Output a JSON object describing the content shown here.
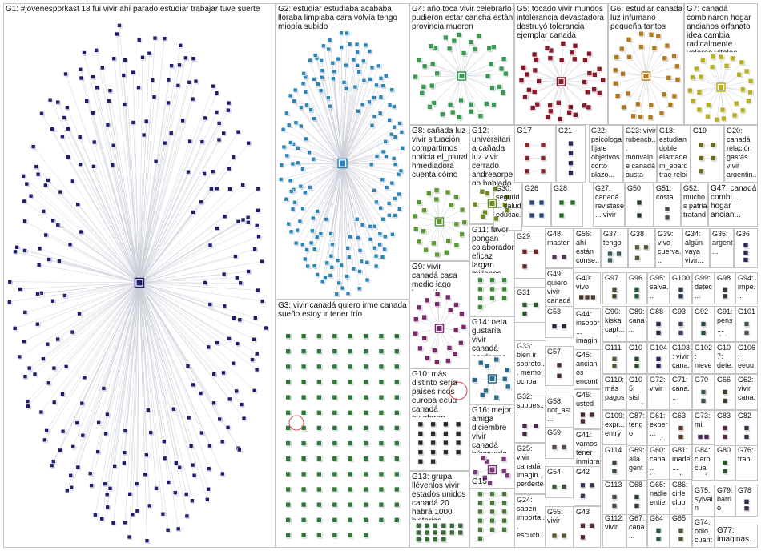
{
  "groups": [
    {
      "id": "G1",
      "title": "G1: #jovenesporkast 18 fui vivir ahí parado estudiar trabajar tuve suerte",
      "color": "#1f1f6e",
      "n": 260,
      "hub": true,
      "layout": "ring"
    },
    {
      "id": "G2",
      "title": "G2: estudiar estudiaba acababa lloraba limpiaba cara volvía tengo miopía subido",
      "color": "#2a86b8",
      "n": 180,
      "hub": true,
      "layout": "ring"
    },
    {
      "id": "G3",
      "title": "G3: vivir canadá quiero irme canada sueño estoy ir tener frío",
      "color": "#2f7a3a",
      "n": 110,
      "hub": false,
      "layout": "grid",
      "extra": "circles"
    },
    {
      "id": "G4",
      "title": "G4: año toca vivir celebrarlo pudieron estar cancha están provincia mueren",
      "color": "#3a9a55",
      "n": 40,
      "hub": true,
      "layout": "ring"
    },
    {
      "id": "G5",
      "title": "G5: tocado vivir mundos intolerancia devastadora destruyó tolerancia ejemplar canadá construido",
      "color": "#8a1a2a",
      "n": 40,
      "hub": true,
      "layout": "ring"
    },
    {
      "id": "G6",
      "title": "G6: estudiar canada luz infumano pequeña tantos llevan año pueden calentarse",
      "color": "#b07a20",
      "n": 30,
      "hub": true,
      "layout": "ring"
    },
    {
      "id": "G7",
      "title": "G7: canadá combinaron hogar ancianos orfanato idea cambia radicalmente valores vitales",
      "color": "#b8b020",
      "n": 28,
      "hub": true,
      "layout": "ring"
    },
    {
      "id": "G8",
      "title": "G8: cañada luz vivir situación compartimos noticia el_plural hmediadora cuenta cómo",
      "color": "#5a9a30",
      "n": 22,
      "hub": true,
      "layout": "ring"
    },
    {
      "id": "G9",
      "title": "G9: vivir canadá casa medio lago kawartha gustaría gente quiero",
      "color": "#7a2a6a",
      "n": 22,
      "hub": true,
      "layout": "ring"
    },
    {
      "id": "G10",
      "title": "G10: más distinto sería países ricos europa eeuu canadá ayudaran vacunas",
      "color": "#2a2a2a",
      "n": 18,
      "hub": false,
      "layout": "grid",
      "extra": "circle"
    },
    {
      "id": "G11",
      "title": "G11: favor pongan colaborador eficaz largan millones vivir reyes lugares distantes",
      "color": "#3a8a3a",
      "n": 10,
      "hub": false,
      "layout": "grid"
    },
    {
      "id": "G12",
      "title": "G12: universitaria cañada luz vivir cerrado andreaorpego hablado kadhiya ajahiou residente",
      "color": "#6a8a20",
      "n": 10,
      "hub": true,
      "layout": "ring"
    },
    {
      "id": "G13",
      "title": "G13: grupa llévenlos vivir estados unidos canadá 20 habrá 1000 historias",
      "color": "#3a6a3a",
      "n": 16,
      "hub": false,
      "layout": "grid"
    },
    {
      "id": "G14",
      "title": "G14: neta gustaría vivir canadá perderme cosa",
      "color": "#2a6a8a",
      "n": 10,
      "hub": true,
      "layout": "ring"
    },
    {
      "id": "G15",
      "title": "G15",
      "color": "#4a7a3a",
      "n": 16,
      "hub": false,
      "layout": "grid"
    },
    {
      "id": "G16",
      "title": "G16: mejor amiga diciembre vivir canadá búsqueda futuro hijos méxico hoy",
      "color": "#7a3a7a",
      "n": 8,
      "hub": true,
      "layout": "ring"
    },
    {
      "id": "G17",
      "title": "G17",
      "color": "#8a2a2a",
      "n": 6,
      "hub": false,
      "layout": "grid"
    },
    {
      "id": "G18",
      "title": "G18: estudian doble elamade m_ebard trae reloj",
      "color": "#7a6a2a",
      "n": 4,
      "hub": false,
      "layout": "grid"
    },
    {
      "id": "G19",
      "title": "G19",
      "color": "#6a6a1a",
      "n": 5,
      "hub": false,
      "layout": "grid"
    },
    {
      "id": "G20",
      "title": "G20: canadá relación gastás vivir argentin...",
      "color": "#8a7a10",
      "n": 4,
      "hub": false,
      "layout": "grid"
    },
    {
      "id": "G21",
      "title": "G21",
      "color": "#2a2a5a",
      "n": 4,
      "hub": false,
      "layout": "grid"
    },
    {
      "id": "G22",
      "title": "G22: psicóloga fíjate objetivos corto plazo...",
      "color": "#6a2a6a",
      "n": 4,
      "hub": false,
      "layout": "grid"
    },
    {
      "id": "G23",
      "title": "G23: vivir rubencb... monvalpe canadá gusta gobierno...",
      "color": "#2a6a4a",
      "n": 4,
      "hub": false,
      "layout": "grid"
    },
    {
      "id": "G24",
      "title": "G24: saben importa... escuch... investi... serio...",
      "color": "#3a3a6a",
      "n": 4,
      "hub": false,
      "layout": "grid"
    },
    {
      "id": "G25",
      "title": "G25: vivir canadá imagin... perderte verdad",
      "color": "#5a3a3a",
      "n": 4,
      "hub": false,
      "layout": "grid"
    },
    {
      "id": "G26",
      "title": "G26",
      "color": "#2a4a7a",
      "n": 4,
      "hub": false,
      "layout": "grid"
    },
    {
      "id": "G27",
      "title": "G27: canadá revistase... vivir meses...",
      "color": "#3a5a2a",
      "n": 3,
      "hub": false,
      "layout": "grid"
    },
    {
      "id": "G28",
      "title": "G28",
      "color": "#2a6a2a",
      "n": 3,
      "hub": false,
      "layout": "grid"
    },
    {
      "id": "G29",
      "title": "G29",
      "color": "#6a2a2a",
      "n": 3,
      "hub": false,
      "layout": "grid"
    },
    {
      "id": "G30",
      "title": "G30: segurid... salud educac...",
      "color": "#3a3a3a",
      "n": 3,
      "hub": false,
      "layout": "grid"
    },
    {
      "id": "G31",
      "title": "G31",
      "color": "#2a5a2a",
      "n": 3,
      "hub": false,
      "layout": "grid"
    },
    {
      "id": "G32",
      "title": "G32: supues...",
      "color": "#4a2a4a",
      "n": 3,
      "hub": false,
      "layout": "grid"
    },
    {
      "id": "G33",
      "title": "G33: bien ir sobreto... memo ochoa debe...",
      "color": "#5a4a2a",
      "n": 3,
      "hub": false,
      "layout": "grid"
    },
    {
      "id": "G34",
      "title": "G34: algún vaya vivir...",
      "color": "#2a4a4a",
      "n": 3,
      "hub": false,
      "layout": "grid"
    },
    {
      "id": "G35",
      "title": "G35: argent...",
      "color": "#4a4a2a",
      "n": 3,
      "hub": false,
      "layout": "grid"
    },
    {
      "id": "G36",
      "title": "G36",
      "color": "#2a2a4a",
      "n": 3,
      "hub": false,
      "layout": "grid"
    },
    {
      "id": "G37",
      "title": "G37: tengo",
      "color": "#3a5a5a",
      "n": 3,
      "hub": false,
      "layout": "grid"
    },
    {
      "id": "G38",
      "title": "G38",
      "color": "#5a5a3a",
      "n": 3,
      "hub": false,
      "layout": "grid"
    },
    {
      "id": "G39",
      "title": "G39: vivo cuerva... inviable canadá mierda...",
      "color": "#2a3a5a",
      "n": 3,
      "hub": false,
      "layout": "grid"
    },
    {
      "id": "G40",
      "title": "G40: vivo",
      "color": "#4a3a2a",
      "n": 3,
      "hub": false,
      "layout": "grid"
    },
    {
      "id": "G41",
      "title": "G41: vamos tener inmigra...",
      "color": "#2a5a3a",
      "n": 3,
      "hub": false,
      "layout": "grid"
    },
    {
      "id": "G42",
      "title": "G42",
      "color": "#3a3a5a",
      "n": 3,
      "hub": false,
      "layout": "grid"
    },
    {
      "id": "G43",
      "title": "G43",
      "color": "#5a2a3a",
      "n": 3,
      "hub": false,
      "layout": "grid"
    },
    {
      "id": "G44",
      "title": "G44: insopor... imaginar vivir...",
      "color": "#3a4a2a",
      "n": 3,
      "hub": false,
      "layout": "grid"
    },
    {
      "id": "G45",
      "title": "G45: ancianos encontr... canadá...",
      "color": "#2a4a5a",
      "n": 3,
      "hub": false,
      "layout": "grid"
    },
    {
      "id": "G46",
      "title": "G46: usted",
      "color": "#4a2a2a",
      "n": 3,
      "hub": false,
      "layout": "grid"
    },
    {
      "id": "G47",
      "title": "G47: canadá combi... hogar ancian...",
      "color": "#2a5a5a",
      "n": 3,
      "hub": false,
      "layout": "grid"
    },
    {
      "id": "G48",
      "title": "G48: master",
      "color": "#5a3a5a",
      "n": 2,
      "hub": false,
      "layout": "grid"
    },
    {
      "id": "G49",
      "title": "G49: quiero vivir canadá",
      "color": "#3a2a5a",
      "n": 2,
      "hub": false,
      "layout": "grid"
    },
    {
      "id": "G50",
      "title": "G50",
      "color": "#2a3a2a",
      "n": 2,
      "hub": false,
      "layout": "grid"
    },
    {
      "id": "G51",
      "title": "G51: costa",
      "color": "#4a4a4a",
      "n": 2,
      "hub": false,
      "layout": "grid"
    },
    {
      "id": "G52",
      "title": "G52: muchos patria tratando carach...",
      "color": "#5a2a5a",
      "n": 2,
      "hub": false,
      "layout": "grid"
    },
    {
      "id": "G53",
      "title": "G53",
      "color": "#2a2a3a",
      "n": 2,
      "hub": false,
      "layout": "grid"
    },
    {
      "id": "G54",
      "title": "G54",
      "color": "#3a5a3a",
      "n": 2,
      "hub": false,
      "layout": "grid"
    },
    {
      "id": "G55",
      "title": "G55: vivir",
      "color": "#5a5a2a",
      "n": 2,
      "hub": false,
      "layout": "grid"
    },
    {
      "id": "G56",
      "title": "G56: ahí están conse... emisió...",
      "color": "#2a3a4a",
      "n": 2,
      "hub": false,
      "layout": "grid"
    },
    {
      "id": "G57",
      "title": "G57",
      "color": "#4a2a3a",
      "n": 2,
      "hub": false,
      "layout": "grid"
    },
    {
      "id": "G58",
      "title": "G58: not_ast... abuelo vivir...",
      "color": "#3a4a4a",
      "n": 2,
      "hub": false,
      "layout": "grid"
    },
    {
      "id": "G59",
      "title": "G59",
      "color": "#5a4a4a",
      "n": 2,
      "hub": false,
      "layout": "grid"
    },
    {
      "id": "G60",
      "title": "G60: cana... bien",
      "color": "#2a4a2a",
      "n": 2,
      "hub": false,
      "layout": "grid"
    },
    {
      "id": "G61",
      "title": "G61: exper... multi... vida...",
      "color": "#4a3a4a",
      "n": 2,
      "hub": false,
      "layout": "grid"
    },
    {
      "id": "G62",
      "title": "G62: vivir cana... jajaja",
      "color": "#3a2a3a",
      "n": 2,
      "hub": false,
      "layout": "grid"
    },
    {
      "id": "G63",
      "title": "G63",
      "color": "#5a3a2a",
      "n": 2,
      "hub": false,
      "layout": "grid"
    },
    {
      "id": "G64",
      "title": "G64",
      "color": "#2a5a4a",
      "n": 2,
      "hub": false,
      "layout": "grid"
    },
    {
      "id": "G65",
      "title": "G65: nadie entie... much...",
      "color": "#4a5a2a",
      "n": 2,
      "hub": false,
      "layout": "grid"
    },
    {
      "id": "G66",
      "title": "G66",
      "color": "#3a3a2a",
      "n": 2,
      "hub": false,
      "layout": "grid"
    },
    {
      "id": "G67",
      "title": "G67: cana...",
      "color": "#5a2a2a",
      "n": 2,
      "hub": false,
      "layout": "grid"
    },
    {
      "id": "G68",
      "title": "G68",
      "color": "#2a3a3a",
      "n": 2,
      "hub": false,
      "layout": "grid"
    },
    {
      "id": "G69",
      "title": "G69: allá gente",
      "color": "#4a4a3a",
      "n": 2,
      "hub": false,
      "layout": "grid"
    },
    {
      "id": "G70",
      "title": "G70",
      "color": "#3a5a4a",
      "n": 2,
      "hub": false,
      "layout": "grid"
    },
    {
      "id": "G71",
      "title": "G71: cana...",
      "color": "#5a4a3a",
      "n": 2,
      "hub": false,
      "layout": "grid"
    },
    {
      "id": "G72",
      "title": "G72: vivir",
      "color": "#2a2a2a",
      "n": 2,
      "hub": false,
      "layout": "grid"
    },
    {
      "id": "G73",
      "title": "G73: mil",
      "color": "#4a2a5a",
      "n": 2,
      "hub": false,
      "layout": "grid"
    },
    {
      "id": "G74",
      "title": "G74: odio cuant...",
      "color": "#3a4a3a",
      "n": 2,
      "hub": false,
      "layout": "grid"
    },
    {
      "id": "G75",
      "title": "G75: sylvain reyna...",
      "color": "#5a3a4a",
      "n": 2,
      "hub": false,
      "layout": "grid"
    },
    {
      "id": "G76",
      "title": "G76: trab...",
      "color": "#2a4a3a",
      "n": 2,
      "hub": false,
      "layout": "grid"
    },
    {
      "id": "G77",
      "title": "G77: imaginas...",
      "color": "#4a3a3a",
      "n": 2,
      "hub": false,
      "layout": "grid"
    },
    {
      "id": "G78",
      "title": "G78",
      "color": "#3a2a4a",
      "n": 2,
      "hub": false,
      "layout": "grid"
    },
    {
      "id": "G79",
      "title": "G79: barrio pobre",
      "color": "#5a5a4a",
      "n": 2,
      "hub": false,
      "layout": "grid"
    },
    {
      "id": "G80",
      "title": "G80",
      "color": "#2a5a2a",
      "n": 2,
      "hub": false,
      "layout": "grid"
    },
    {
      "id": "G81",
      "title": "G81: made... caba...",
      "color": "#4a4a5a",
      "n": 2,
      "hub": false,
      "layout": "grid"
    },
    {
      "id": "G82",
      "title": "G82",
      "color": "#3a3a4a",
      "n": 2,
      "hub": false,
      "layout": "grid"
    },
    {
      "id": "G83",
      "title": "G83",
      "color": "#5a2a4a",
      "n": 2,
      "hub": false,
      "layout": "grid"
    },
    {
      "id": "G84",
      "title": "G84: claro cual pref...",
      "color": "#2a3a5a",
      "n": 2,
      "hub": false,
      "layout": "grid"
    },
    {
      "id": "G85",
      "title": "G85",
      "color": "#4a5a3a",
      "n": 2,
      "hub": false,
      "layout": "grid"
    },
    {
      "id": "G86",
      "title": "G86: cirle club vieri...",
      "color": "#3a4a5a",
      "n": 2,
      "hub": false,
      "layout": "grid"
    },
    {
      "id": "G87",
      "title": "G87: tengo cana...",
      "color": "#5a4a2a",
      "n": 2,
      "hub": false,
      "layout": "grid"
    },
    {
      "id": "G88",
      "title": "G88",
      "color": "#2a2a4a",
      "n": 2,
      "hub": false,
      "layout": "grid"
    },
    {
      "id": "G89",
      "title": "G89: cana... pong...",
      "color": "#4a2a4a",
      "n": 2,
      "hub": false,
      "layout": "grid"
    },
    {
      "id": "G90",
      "title": "G90: kiska capt... cost...",
      "color": "#3a5a2a",
      "n": 2,
      "hub": false,
      "layout": "grid"
    },
    {
      "id": "G91",
      "title": "G91: pens... dejar... irme...",
      "color": "#5a3a3a",
      "n": 2,
      "hub": false,
      "layout": "grid"
    },
    {
      "id": "G92",
      "title": "G92",
      "color": "#2a4a4a",
      "n": 2,
      "hub": false,
      "layout": "grid"
    },
    {
      "id": "G93",
      "title": "G93",
      "color": "#4a3a5a",
      "n": 2,
      "hub": false,
      "layout": "grid"
    },
    {
      "id": "G94",
      "title": "G94: impe... ingre...",
      "color": "#3a2a2a",
      "n": 2,
      "hub": false,
      "layout": "grid"
    },
    {
      "id": "G95",
      "title": "G95: salva...",
      "color": "#5a5a5a",
      "n": 2,
      "hub": false,
      "layout": "grid"
    },
    {
      "id": "G96",
      "title": "G96",
      "color": "#2a5a3a",
      "n": 2,
      "hub": false,
      "layout": "grid"
    },
    {
      "id": "G97",
      "title": "G97",
      "color": "#4a4a2a",
      "n": 2,
      "hub": false,
      "layout": "grid"
    },
    {
      "id": "G98",
      "title": "G98",
      "color": "#3a3a3a",
      "n": 2,
      "hub": false,
      "layout": "grid"
    },
    {
      "id": "G99",
      "title": "G99: detec... casos varia...",
      "color": "#5a2a3a",
      "n": 2,
      "hub": false,
      "layout": "grid"
    },
    {
      "id": "G100",
      "title": "G100",
      "color": "#2a3a4a",
      "n": 2,
      "hub": false,
      "layout": "grid"
    },
    {
      "id": "G101",
      "title": "G101",
      "color": "#4a5a4a",
      "n": 2,
      "hub": false,
      "layout": "grid"
    },
    {
      "id": "G102",
      "title": "G102: nieve vivir meses",
      "color": "#3a4a2a",
      "n": 2,
      "hub": false,
      "layout": "grid"
    },
    {
      "id": "G103",
      "title": "G103: vivir cana... hoy...",
      "color": "#5a4a5a",
      "n": 2,
      "hub": false,
      "layout": "grid"
    },
    {
      "id": "G104",
      "title": "G104",
      "color": "#2a2a5a",
      "n": 2,
      "hub": false,
      "layout": "grid"
    },
    {
      "id": "G105",
      "title": "G105: sisi sueño vivir...",
      "color": "#4a2a2a",
      "n": 2,
      "hub": false,
      "layout": "grid"
    },
    {
      "id": "G106",
      "title": "G106: eeuu",
      "color": "#3a5a5a",
      "n": 2,
      "hub": false,
      "layout": "grid"
    },
    {
      "id": "G107",
      "title": "G107: dete...",
      "color": "#5a3a2a",
      "n": 2,
      "hub": false,
      "layout": "grid"
    },
    {
      "id": "G108",
      "title": "G108",
      "color": "#2a4a2a",
      "n": 2,
      "hub": false,
      "layout": "grid"
    },
    {
      "id": "G109",
      "title": "G109: expr... entry progr...",
      "color": "#4a3a2a",
      "n": 2,
      "hub": false,
      "layout": "grid"
    },
    {
      "id": "G110",
      "title": "G110: más pagos usa",
      "color": "#3a2a5a",
      "n": 2,
      "hub": false,
      "layout": "grid"
    },
    {
      "id": "G111",
      "title": "G111",
      "color": "#5a5a3a",
      "n": 2,
      "hub": false,
      "layout": "grid"
    },
    {
      "id": "G112",
      "title": "G112: vivir",
      "color": "#2a3a2a",
      "n": 2,
      "hub": false,
      "layout": "grid"
    },
    {
      "id": "G113",
      "title": "G113",
      "color": "#4a4a4a",
      "n": 2,
      "hub": false,
      "layout": "grid"
    },
    {
      "id": "G114",
      "title": "G114",
      "color": "#3a4a4a",
      "n": 2,
      "hub": false,
      "layout": "grid"
    }
  ]
}
